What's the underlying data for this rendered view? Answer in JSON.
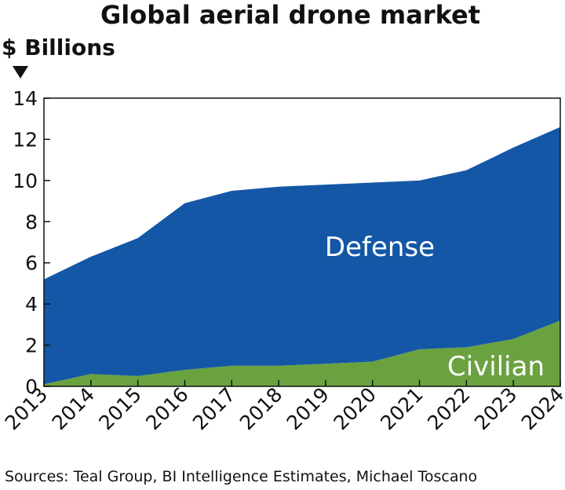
{
  "chart_data": {
    "type": "area",
    "stacked": true,
    "title": "Global aerial drone market",
    "ylabel": "$ Billions",
    "xlabel": "",
    "categories": [
      "2013",
      "2014",
      "2015",
      "2016",
      "2017",
      "2018",
      "2019",
      "2020",
      "2021",
      "2022",
      "2023",
      "2024"
    ],
    "ylim": [
      0,
      14
    ],
    "yticks": [
      0,
      2,
      4,
      6,
      8,
      10,
      12,
      14
    ],
    "grid": false,
    "legend": "none",
    "series": [
      {
        "name": "Civilian",
        "values": [
          0.1,
          0.6,
          0.5,
          0.8,
          1.0,
          1.0,
          1.1,
          1.2,
          1.8,
          1.9,
          2.3,
          3.2
        ],
        "color": "#6aa240"
      },
      {
        "name": "Defense",
        "values": [
          5.1,
          5.7,
          6.7,
          8.1,
          8.5,
          8.7,
          8.7,
          8.7,
          8.2,
          8.6,
          9.3,
          9.4
        ],
        "color": "#1457a6"
      }
    ],
    "totals": [
      5.2,
      6.3,
      7.2,
      8.9,
      9.5,
      9.7,
      9.8,
      9.9,
      10.0,
      10.5,
      11.6,
      12.6
    ],
    "source": "Sources: Teal Group, BI Intelligence Estimates, Michael Toscano"
  },
  "colors": {
    "axis": "#111111",
    "defense_label": "#ffffff",
    "civilian_label": "#ffffff"
  }
}
